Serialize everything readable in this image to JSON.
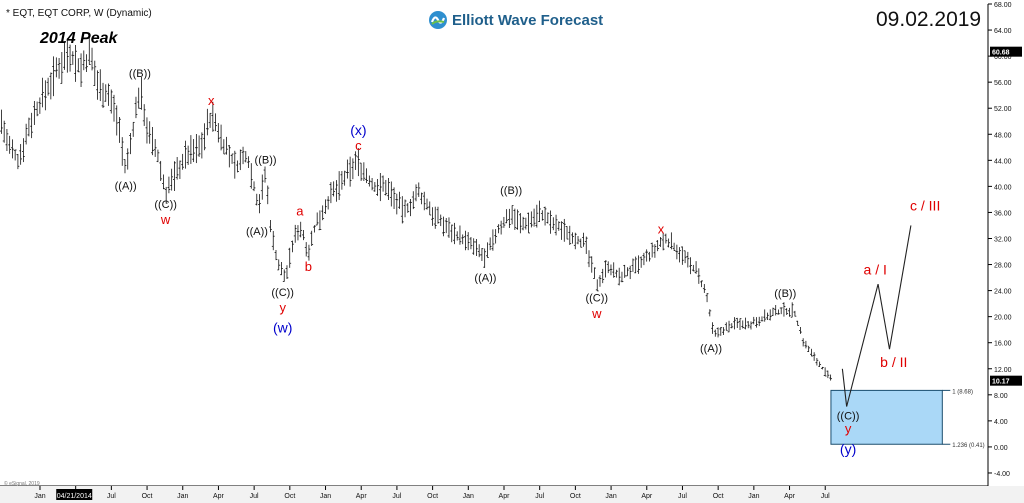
{
  "header": {
    "symbol_line": "* EQT, EQT CORP, W (Dynamic)",
    "peak_label": "2014 Peak",
    "date": "09.02.2019",
    "logo_text": "Elliott Wave Forecast",
    "copyright": "© eSignal, 2019",
    "crosshair_date": "04/21/2014"
  },
  "chart_data": {
    "type": "ohlc",
    "title": "",
    "ylim": [
      -6,
      68
    ],
    "y_ticks": [
      -4,
      0,
      4,
      8,
      12,
      16,
      20,
      24,
      28,
      32,
      36,
      40,
      44,
      48,
      52,
      56,
      60,
      64,
      68
    ],
    "y_tick_labels": [
      "-4.00",
      "0.00",
      "4.00",
      "8.00",
      "12.00",
      "16.00",
      "20.00",
      "24.00",
      "28.00",
      "32.00",
      "36.00",
      "40.00",
      "44.00",
      "48.00",
      "52.00",
      "56.00",
      "60.00",
      "64.00",
      "68.00"
    ],
    "x_tick_labels": [
      "Jan",
      "Apr",
      "Jul",
      "Oct",
      "Jan",
      "Apr",
      "Jul",
      "Oct",
      "Jan",
      "Apr",
      "Jul",
      "Oct",
      "Jan",
      "Apr",
      "Jul",
      "Oct",
      "Jan",
      "Apr",
      "Jul",
      "Oct",
      "Jan",
      "Apr",
      "Jul"
    ],
    "x_tick_positions": [
      1.0,
      1.25,
      1.5,
      1.75,
      2.0,
      2.25,
      2.5,
      2.75,
      3.0,
      3.25,
      3.5,
      3.75,
      4.0,
      4.25,
      4.5,
      4.75,
      5.0,
      5.25,
      5.5,
      5.75,
      6.0,
      6.25,
      6.5
    ],
    "x_tick_visible": [
      true,
      false,
      true,
      true,
      true,
      true,
      true,
      true,
      true,
      true,
      true,
      true,
      true,
      true,
      true,
      true,
      true,
      true,
      true,
      true,
      true,
      true,
      true
    ],
    "x_range": [
      0.72,
      7.64
    ],
    "price_key": [
      [
        0.73,
        50
      ],
      [
        0.78,
        46
      ],
      [
        0.85,
        44
      ],
      [
        0.92,
        49
      ],
      [
        0.98,
        52
      ],
      [
        1.05,
        55
      ],
      [
        1.15,
        59
      ],
      [
        1.2,
        61
      ],
      [
        1.28,
        58
      ],
      [
        1.35,
        60
      ],
      [
        1.4,
        56
      ],
      [
        1.48,
        54
      ],
      [
        1.55,
        50
      ],
      [
        1.6,
        42
      ],
      [
        1.66,
        50
      ],
      [
        1.7,
        55
      ],
      [
        1.76,
        48
      ],
      [
        1.82,
        45
      ],
      [
        1.88,
        39
      ],
      [
        1.95,
        42
      ],
      [
        2.03,
        45
      ],
      [
        2.12,
        46
      ],
      [
        2.2,
        51
      ],
      [
        2.3,
        46
      ],
      [
        2.37,
        43
      ],
      [
        2.45,
        45
      ],
      [
        2.53,
        37
      ],
      [
        2.58,
        42
      ],
      [
        2.62,
        33
      ],
      [
        2.67,
        28
      ],
      [
        2.72,
        26
      ],
      [
        2.78,
        32
      ],
      [
        2.82,
        34
      ],
      [
        2.88,
        30
      ],
      [
        2.93,
        34
      ],
      [
        3.02,
        38
      ],
      [
        3.13,
        41
      ],
      [
        3.22,
        44
      ],
      [
        3.33,
        40
      ],
      [
        3.43,
        40
      ],
      [
        3.55,
        36
      ],
      [
        3.65,
        39
      ],
      [
        3.78,
        35
      ],
      [
        3.9,
        33
      ],
      [
        4.02,
        31
      ],
      [
        4.12,
        29
      ],
      [
        4.2,
        33
      ],
      [
        4.3,
        36
      ],
      [
        4.38,
        34
      ],
      [
        4.5,
        36
      ],
      [
        4.6,
        34
      ],
      [
        4.7,
        33
      ],
      [
        4.82,
        31
      ],
      [
        4.9,
        25
      ],
      [
        4.98,
        28
      ],
      [
        5.05,
        26
      ],
      [
        5.2,
        28
      ],
      [
        5.3,
        30
      ],
      [
        5.38,
        32
      ],
      [
        5.48,
        30
      ],
      [
        5.55,
        28
      ],
      [
        5.6,
        27
      ],
      [
        5.67,
        23
      ],
      [
        5.72,
        17
      ],
      [
        5.78,
        18
      ],
      [
        5.88,
        19
      ],
      [
        5.98,
        19
      ],
      [
        6.08,
        20
      ],
      [
        6.2,
        21
      ],
      [
        6.28,
        21
      ],
      [
        6.35,
        16
      ],
      [
        6.45,
        13
      ],
      [
        6.55,
        10
      ]
    ],
    "projection": [
      [
        6.62,
        12
      ],
      [
        6.65,
        6.2
      ],
      [
        6.87,
        25
      ],
      [
        6.95,
        15
      ],
      [
        7.1,
        34
      ]
    ],
    "last_price": "10.17",
    "top_price": "60.68",
    "box": {
      "y_top": 8.68,
      "y_bottom": 0.41,
      "x_start": 6.54,
      "x_end": 7.32,
      "label_top": "1 (8.68)",
      "label_bottom": "1.236 (0.41)"
    },
    "annotations": [
      {
        "text": "((B))",
        "x": 1.7,
        "y": 56.8,
        "color": "black"
      },
      {
        "text": "((A))",
        "x": 1.6,
        "y": 39.5,
        "color": "black"
      },
      {
        "text": "((C))",
        "x": 1.88,
        "y": 36.7,
        "color": "black"
      },
      {
        "text": "w",
        "x": 1.88,
        "y": 34.2,
        "color": "red"
      },
      {
        "text": "x",
        "x": 2.2,
        "y": 52.5,
        "color": "red"
      },
      {
        "text": "((B))",
        "x": 2.58,
        "y": 43.5,
        "color": "black"
      },
      {
        "text": "((A))",
        "x": 2.52,
        "y": 32.5,
        "color": "black"
      },
      {
        "text": "a",
        "x": 2.82,
        "y": 35.5,
        "color": "red"
      },
      {
        "text": "b",
        "x": 2.88,
        "y": 27.0,
        "color": "red"
      },
      {
        "text": "((C))",
        "x": 2.7,
        "y": 23.2,
        "color": "black"
      },
      {
        "text": "y",
        "x": 2.7,
        "y": 20.7,
        "color": "red"
      },
      {
        "text": "(w)",
        "x": 2.7,
        "y": 17.6,
        "color": "blue"
      },
      {
        "text": "(x)",
        "x": 3.23,
        "y": 47.9,
        "color": "blue"
      },
      {
        "text": "c",
        "x": 3.23,
        "y": 45.6,
        "color": "red"
      },
      {
        "text": "((B))",
        "x": 4.3,
        "y": 38.8,
        "color": "black"
      },
      {
        "text": "((A))",
        "x": 4.12,
        "y": 25.4,
        "color": "black"
      },
      {
        "text": "((C))",
        "x": 4.9,
        "y": 22.3,
        "color": "black"
      },
      {
        "text": "w",
        "x": 4.9,
        "y": 19.8,
        "color": "red"
      },
      {
        "text": "x",
        "x": 5.35,
        "y": 32.8,
        "color": "red"
      },
      {
        "text": "((B))",
        "x": 6.22,
        "y": 23.0,
        "color": "black"
      },
      {
        "text": "((A))",
        "x": 5.7,
        "y": 14.6,
        "color": "black"
      },
      {
        "text": "((C))",
        "x": 6.66,
        "y": 4.2,
        "color": "black"
      },
      {
        "text": "y",
        "x": 6.66,
        "y": 2.1,
        "color": "red"
      },
      {
        "text": "(y)",
        "x": 6.66,
        "y": -1.1,
        "color": "blue"
      },
      {
        "text": "a / I",
        "x": 6.85,
        "y": 26.5,
        "color": "red"
      },
      {
        "text": "b / II",
        "x": 6.98,
        "y": 12.3,
        "color": "red"
      },
      {
        "text": "c / III",
        "x": 7.2,
        "y": 36.3,
        "color": "red"
      }
    ]
  }
}
